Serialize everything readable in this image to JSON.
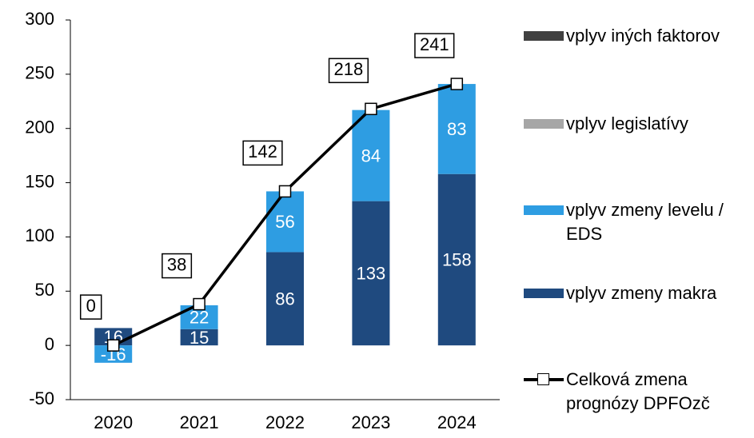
{
  "chart_data": {
    "type": "bar",
    "categories": [
      "2020",
      "2021",
      "2022",
      "2023",
      "2024"
    ],
    "series": [
      {
        "name": "vplyv iných faktorov",
        "color": "#404040",
        "values": [
          0,
          0,
          0,
          0,
          0
        ]
      },
      {
        "name": "vplyv legislatívy",
        "color": "#a6a6a6",
        "values": [
          0,
          0,
          0,
          0,
          0
        ]
      },
      {
        "name": "vplyv zmeny levelu / EDS",
        "color": "#2e9de2",
        "values": [
          -16,
          22,
          56,
          84,
          83
        ]
      },
      {
        "name": "vplyv zmeny makra",
        "color": "#1f4a7f",
        "values": [
          16,
          15,
          86,
          133,
          158
        ]
      },
      {
        "name": "Celková zmena prognózy DPFOzč",
        "type": "line",
        "color": "#000000",
        "values": [
          0,
          38,
          142,
          218,
          241
        ]
      }
    ],
    "ylim": [
      -50,
      300
    ],
    "yticks": [
      -50,
      0,
      50,
      100,
      150,
      200,
      250,
      300
    ],
    "grid": false
  }
}
